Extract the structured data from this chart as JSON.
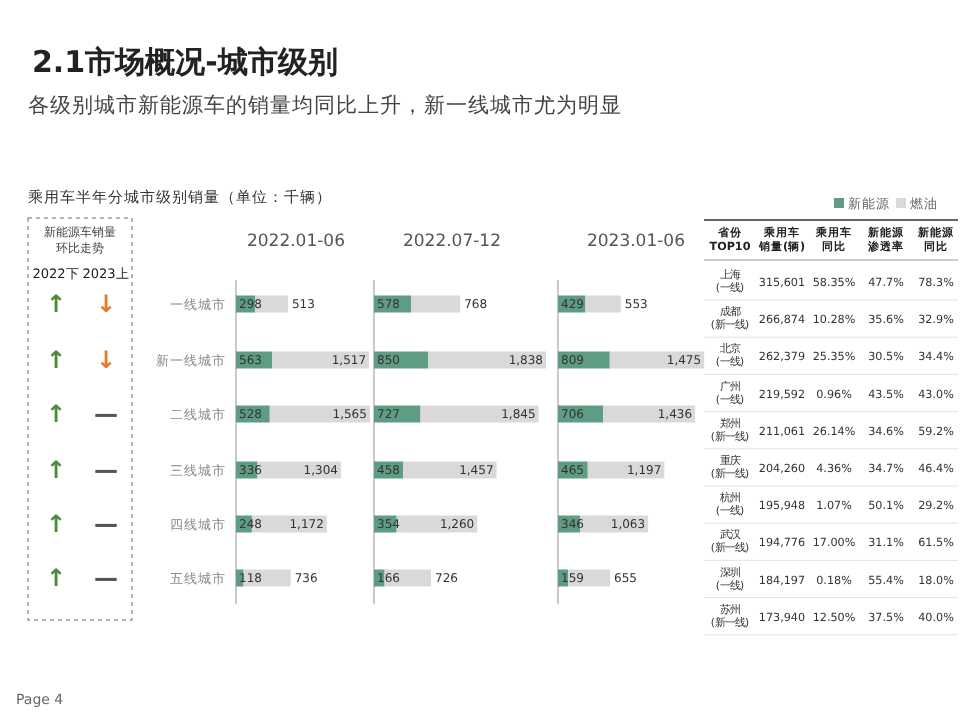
{
  "chart_data": [
    {
      "type": "other",
      "title": "2.1市场概况-城市级别",
      "subtitle": "各级别城市新能源车的销量均同比上升，新一线城市尤为明显",
      "annotations": [
        "乘用车半年分城市级别销量（单位：千辆）",
        "Page 4"
      ]
    },
    {
      "type": "other",
      "title": "新能源车销量环比走势",
      "categories": [
        "2022下",
        "2023上"
      ],
      "cell_labels": [
        [
          "↑",
          "↓"
        ],
        [
          "↑",
          "↓"
        ],
        [
          "↑",
          "—"
        ],
        [
          "↑",
          "—"
        ],
        [
          "↑",
          "—"
        ],
        [
          "↑",
          "—"
        ]
      ],
      "colors": [
        [
          "#4f8a3c",
          "#e07b2a"
        ],
        [
          "#4f8a3c",
          "#e07b2a"
        ],
        [
          "#4f8a3c",
          "#555555"
        ],
        [
          "#4f8a3c",
          "#555555"
        ],
        [
          "#4f8a3c",
          "#555555"
        ],
        [
          "#4f8a3c",
          "#555555"
        ]
      ]
    },
    {
      "type": "bar",
      "title": "2022.01-06",
      "orientation": "horizontal",
      "stacked": true,
      "tick_labels": "y",
      "legend": "top right",
      "categories": [
        "一线城市",
        "新一线城市",
        "二线城市",
        "三线城市",
        "四线城市",
        "五线城市"
      ],
      "series": [
        {
          "name": "新能源",
          "color": "#5e9c84",
          "values": [
            298,
            563,
            528,
            336,
            248,
            118
          ],
          "value_labels": [
            "298",
            "563",
            "528",
            "336",
            "248",
            "118"
          ]
        },
        {
          "name": "燃油",
          "color": "#d9d9d9",
          "values": [
            513,
            1517,
            1565,
            1304,
            1172,
            736
          ],
          "value_labels": [
            "513",
            "1,517",
            "1,565",
            "1,304",
            "1,172",
            "736"
          ]
        }
      ]
    },
    {
      "type": "bar",
      "title": "2022.07-12",
      "orientation": "horizontal",
      "stacked": true,
      "tick_labels": false,
      "categories": [
        null,
        null,
        null,
        null,
        null,
        null
      ],
      "series": [
        {
          "color": "#5e9c84",
          "values": [
            578,
            850,
            727,
            458,
            354,
            166
          ],
          "value_labels": [
            "578",
            "850",
            "727",
            "458",
            "354",
            "166"
          ]
        },
        {
          "color": "#d9d9d9",
          "values": [
            768,
            1838,
            1845,
            1457,
            1260,
            726
          ],
          "value_labels": [
            "768",
            "1,838",
            "1,845",
            "1,457",
            "1,260",
            "726"
          ]
        }
      ]
    },
    {
      "type": "bar",
      "title": "2023.01-06",
      "orientation": "horizontal",
      "stacked": true,
      "tick_labels": false,
      "categories": [
        null,
        null,
        null,
        null,
        null,
        null
      ],
      "series": [
        {
          "color": "#5e9c84",
          "values": [
            429,
            809,
            706,
            465,
            346,
            159
          ],
          "value_labels": [
            "429",
            "809",
            "706",
            "465",
            "346",
            "159"
          ]
        },
        {
          "color": "#d9d9d9",
          "values": [
            553,
            1475,
            1436,
            1197,
            1063,
            655
          ],
          "value_labels": [
            "553",
            "1,475",
            "1,436",
            "1,197",
            "1,063",
            "655"
          ]
        }
      ]
    },
    {
      "type": "other",
      "categories": [
        "省份\nTOP10",
        "乘用车销量(辆)",
        "乘用车同比",
        "新能源渗透率",
        "新能源同比"
      ],
      "y_categories": [
        "上海\n(一线)",
        "成都\n(新一线)",
        "北京\n(一线)",
        "广州\n(一线)",
        "郑州\n(新一线)",
        "重庆\n(新一线)",
        "杭州\n(一线)",
        "武汉\n(新一线)",
        "深圳\n(一线)",
        "苏州\n(新一线)"
      ],
      "cell_labels": [
        [
          "315,601",
          "58.35%",
          "47.7%",
          "78.3%"
        ],
        [
          "266,874",
          "10.28%",
          "35.6%",
          "32.9%"
        ],
        [
          "262,379",
          "25.35%",
          "30.5%",
          "34.4%"
        ],
        [
          "219,592",
          "0.96%",
          "43.5%",
          "43.0%"
        ],
        [
          "211,061",
          "26.14%",
          "34.6%",
          "59.2%"
        ],
        [
          "204,260",
          "4.36%",
          "34.7%",
          "46.4%"
        ],
        [
          "195,948",
          "1.07%",
          "50.1%",
          "29.2%"
        ],
        [
          "194,776",
          "17.00%",
          "31.1%",
          "61.5%"
        ],
        [
          "184,197",
          "0.18%",
          "55.4%",
          "18.0%"
        ],
        [
          "173,940",
          "12.50%",
          "37.5%",
          "40.0%"
        ]
      ]
    }
  ]
}
